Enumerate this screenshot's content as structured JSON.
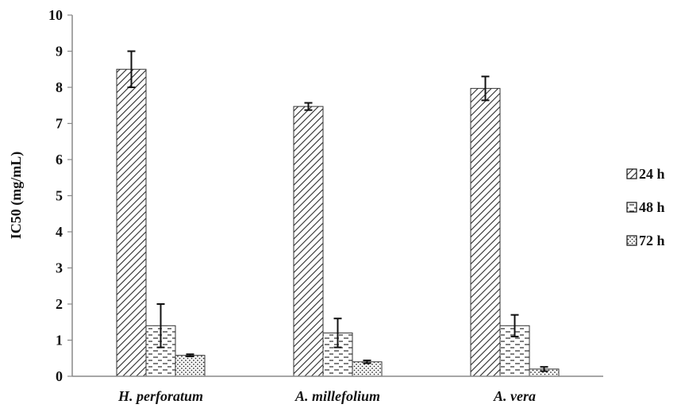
{
  "chart_data": {
    "type": "bar",
    "ylabel": "IC50 (mg/mL)",
    "xlabel": "",
    "ylim": [
      0,
      10
    ],
    "yticks": [
      "0",
      "1",
      "2",
      "3",
      "4",
      "5",
      "6",
      "7",
      "8",
      "9",
      "10"
    ],
    "categories": [
      "H. perforatum",
      "A. millefolium",
      "A. vera"
    ],
    "series": [
      {
        "name": "24 h",
        "pattern": "diagonal-dense",
        "values": [
          8.5,
          7.47,
          7.97
        ],
        "errors": [
          0.5,
          0.1,
          0.33
        ]
      },
      {
        "name": "48 h",
        "pattern": "dashes",
        "values": [
          1.4,
          1.2,
          1.4
        ],
        "errors": [
          0.6,
          0.4,
          0.3
        ]
      },
      {
        "name": "72 h",
        "pattern": "dots",
        "values": [
          0.58,
          0.4,
          0.2
        ],
        "errors": [
          0.03,
          0.04,
          0.06
        ]
      }
    ],
    "legend_position": "right",
    "grid": false,
    "colors": {
      "fill": "#ffffff",
      "pattern": "#2b2b2b",
      "axis": "#888888",
      "stroke": "#333333"
    }
  }
}
